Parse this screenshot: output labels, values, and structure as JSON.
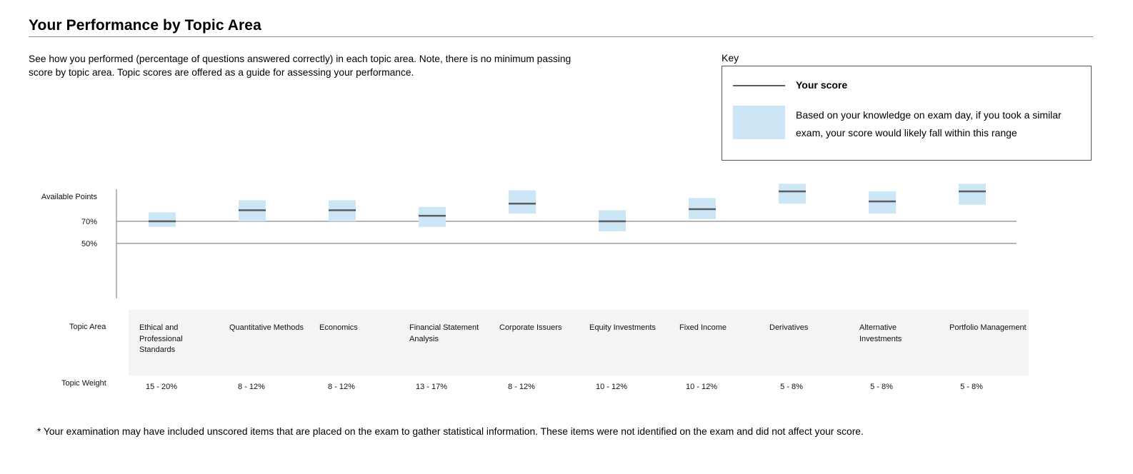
{
  "page": {
    "title": "Your Performance by Topic Area",
    "intro": "See how you performed (percentage of questions answered correctly) in each topic area. Note, there is no minimum passing score by topic area. Topic scores are offered as a guide for assessing your performance.",
    "footnote": "* Your examination may have included unscored items that are placed on the exam to gather statistical information. These items were not identified on the exam and did not affect your score."
  },
  "key": {
    "label": "Key",
    "score_label": "Your score",
    "range_label": "Based on your knowledge on exam day, if you took a similar exam, your score would likely fall within this range",
    "score_color": "#5e5e5e",
    "range_color": "#cde6f5"
  },
  "table": {
    "topic_area_label": "Topic Area",
    "topic_weight_label": "Topic Weight"
  },
  "chart_data": {
    "type": "range",
    "y_tick_labels": [
      "Available Points",
      "70%",
      "50%"
    ],
    "y_ticks": [
      {
        "label": "Available Points",
        "value": 100
      },
      {
        "label": "70%",
        "value": 70
      },
      {
        "label": "50%",
        "value": 50
      }
    ],
    "ylim": [
      0,
      100
    ],
    "gridlines_at": [
      70,
      50
    ],
    "categories": [
      "Ethical and Professional Standards",
      "Quantitative Methods",
      "Economics",
      "Financial Statement Analysis",
      "Corporate Issuers",
      "Equity Investments",
      "Fixed Income",
      "Derivatives",
      "Alternative Investments",
      "Portfolio Management"
    ],
    "topic_weights": [
      "15 - 20%",
      "8 - 12%",
      "8 - 12%",
      "13 - 17%",
      "8 - 12%",
      "10 - 12%",
      "10 - 12%",
      "5 - 8%",
      "5 - 8%",
      "5 - 8%"
    ],
    "scores": [
      70,
      80,
      80,
      75,
      86,
      70,
      81,
      97,
      88,
      97
    ],
    "range_low": [
      65,
      70,
      70,
      65,
      77,
      61,
      72,
      86,
      77,
      85
    ],
    "range_high": [
      78,
      89,
      89,
      83,
      98,
      80,
      91,
      104,
      97,
      104
    ],
    "legend": "top-right"
  }
}
